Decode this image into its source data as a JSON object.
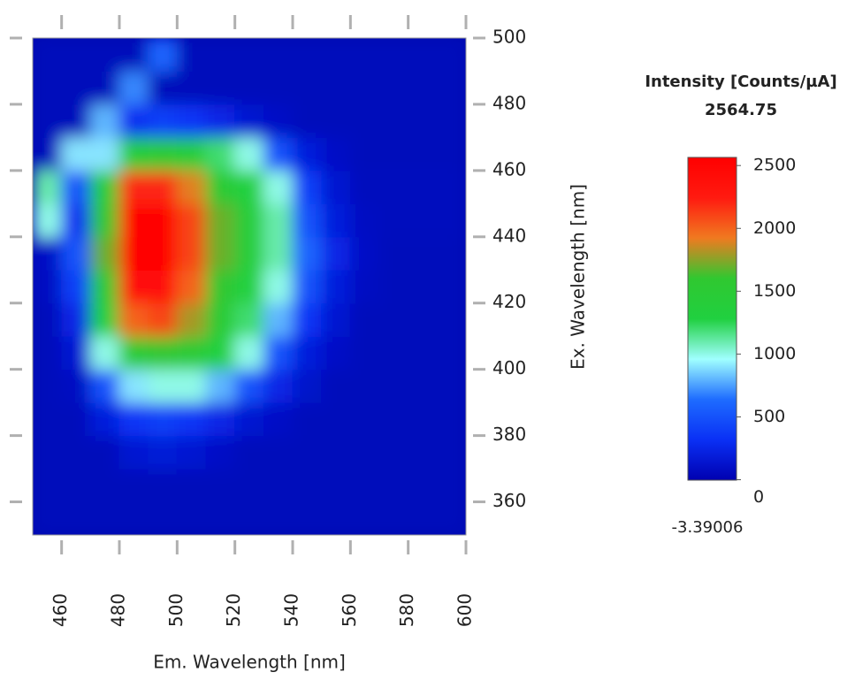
{
  "chart_data": {
    "type": "heatmap",
    "x_label": "Em. Wavelength [nm]",
    "y_label": "Ex. Wavelength [nm]",
    "xlim": [
      450,
      600
    ],
    "xticks": [
      460,
      480,
      500,
      520,
      540,
      560,
      580,
      600
    ],
    "ylim": [
      350,
      500
    ],
    "yticks": [
      360,
      380,
      400,
      420,
      440,
      460,
      480,
      500
    ],
    "x": [
      455,
      465,
      475,
      485,
      495,
      505,
      515,
      525,
      535,
      545,
      555,
      565,
      575,
      585,
      595
    ],
    "y": [
      355,
      365,
      375,
      385,
      395,
      405,
      415,
      425,
      435,
      445,
      455,
      465,
      475,
      485,
      495
    ],
    "z": [
      [
        50,
        50,
        50,
        50,
        50,
        50,
        50,
        50,
        50,
        50,
        50,
        50,
        50,
        50,
        50
      ],
      [
        50,
        50,
        50,
        50,
        50,
        50,
        50,
        50,
        50,
        50,
        50,
        50,
        50,
        50,
        50
      ],
      [
        50,
        50,
        50,
        150,
        180,
        150,
        100,
        50,
        50,
        50,
        50,
        50,
        50,
        50,
        50
      ],
      [
        50,
        50,
        200,
        350,
        400,
        350,
        250,
        150,
        100,
        50,
        50,
        50,
        50,
        50,
        50
      ],
      [
        50,
        80,
        500,
        900,
        1000,
        1000,
        800,
        500,
        250,
        120,
        50,
        50,
        50,
        50,
        50
      ],
      [
        50,
        150,
        1000,
        1500,
        1600,
        1500,
        1300,
        1000,
        500,
        200,
        100,
        50,
        50,
        50,
        50
      ],
      [
        50,
        250,
        1300,
        2000,
        2100,
        1800,
        1500,
        1200,
        800,
        350,
        150,
        50,
        50,
        50,
        50
      ],
      [
        80,
        400,
        1500,
        2400,
        2400,
        2000,
        1600,
        1300,
        1000,
        500,
        200,
        80,
        50,
        50,
        50
      ],
      [
        100,
        500,
        1700,
        2550,
        2550,
        2100,
        1700,
        1400,
        1100,
        600,
        250,
        100,
        50,
        50,
        50
      ],
      [
        1000,
        300,
        1600,
        2500,
        2500,
        2100,
        1700,
        1400,
        1100,
        500,
        200,
        80,
        60,
        60,
        60
      ],
      [
        1100,
        500,
        1400,
        2200,
        2200,
        1900,
        1500,
        1300,
        1000,
        400,
        150,
        60,
        60,
        60,
        60
      ],
      [
        50,
        900,
        900,
        1400,
        1500,
        1400,
        1200,
        1000,
        500,
        200,
        100,
        50,
        50,
        50,
        50
      ],
      [
        50,
        50,
        800,
        300,
        400,
        350,
        250,
        150,
        100,
        50,
        50,
        50,
        50,
        50,
        50
      ],
      [
        50,
        50,
        50,
        700,
        50,
        50,
        50,
        50,
        50,
        50,
        50,
        50,
        50,
        50,
        50
      ],
      [
        50,
        50,
        50,
        50,
        600,
        50,
        50,
        50,
        50,
        50,
        50,
        50,
        50,
        50,
        50
      ]
    ],
    "colormap": [
      "#0000b0",
      "#0a30f5",
      "#1e6cff",
      "#a0ffff",
      "#20d040",
      "#30c830",
      "#f07a20",
      "#ff1a10",
      "#ff0000"
    ],
    "colorbar": {
      "label": "Intensity [Counts/µA]",
      "min": -3.39006,
      "max": 2564.75,
      "ticks": [
        0,
        500,
        1000,
        1500,
        2000,
        2500
      ]
    }
  }
}
